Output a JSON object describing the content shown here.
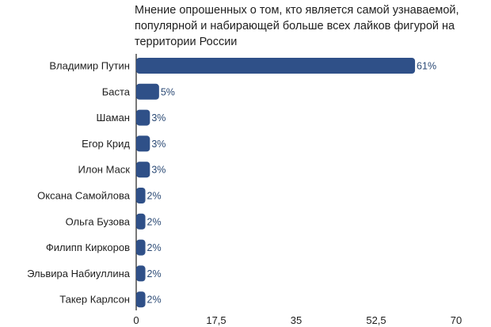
{
  "chart_data": {
    "type": "bar",
    "orientation": "horizontal",
    "title_lines": [
      "Мнение опрошенных о том, кто является самой узнаваемой,",
      "популярной и набирающей больше всех лайков фигурой на",
      "территории России"
    ],
    "categories": [
      "Владимир Путин",
      "Баста",
      "Шаман",
      "Егор Крид",
      "Илон Маск",
      "Оксана Самойлова",
      "Ольга Бузова",
      "Филипп Киркоров",
      "Эльвира Набиуллина",
      "Такер Карлсон"
    ],
    "values": [
      61,
      5,
      3,
      3,
      3,
      2,
      2,
      2,
      2,
      2
    ],
    "value_labels": [
      "61%",
      "5%",
      "3%",
      "3%",
      "3%",
      "2%",
      "2%",
      "2%",
      "2%",
      "2%"
    ],
    "xlim": [
      0,
      70
    ],
    "x_ticks": [
      "0",
      "17,5",
      "35",
      "52,5",
      "70"
    ],
    "bar_color": "#2f5088",
    "label_color": "#2b4a75",
    "grid": false,
    "legend": "none"
  }
}
